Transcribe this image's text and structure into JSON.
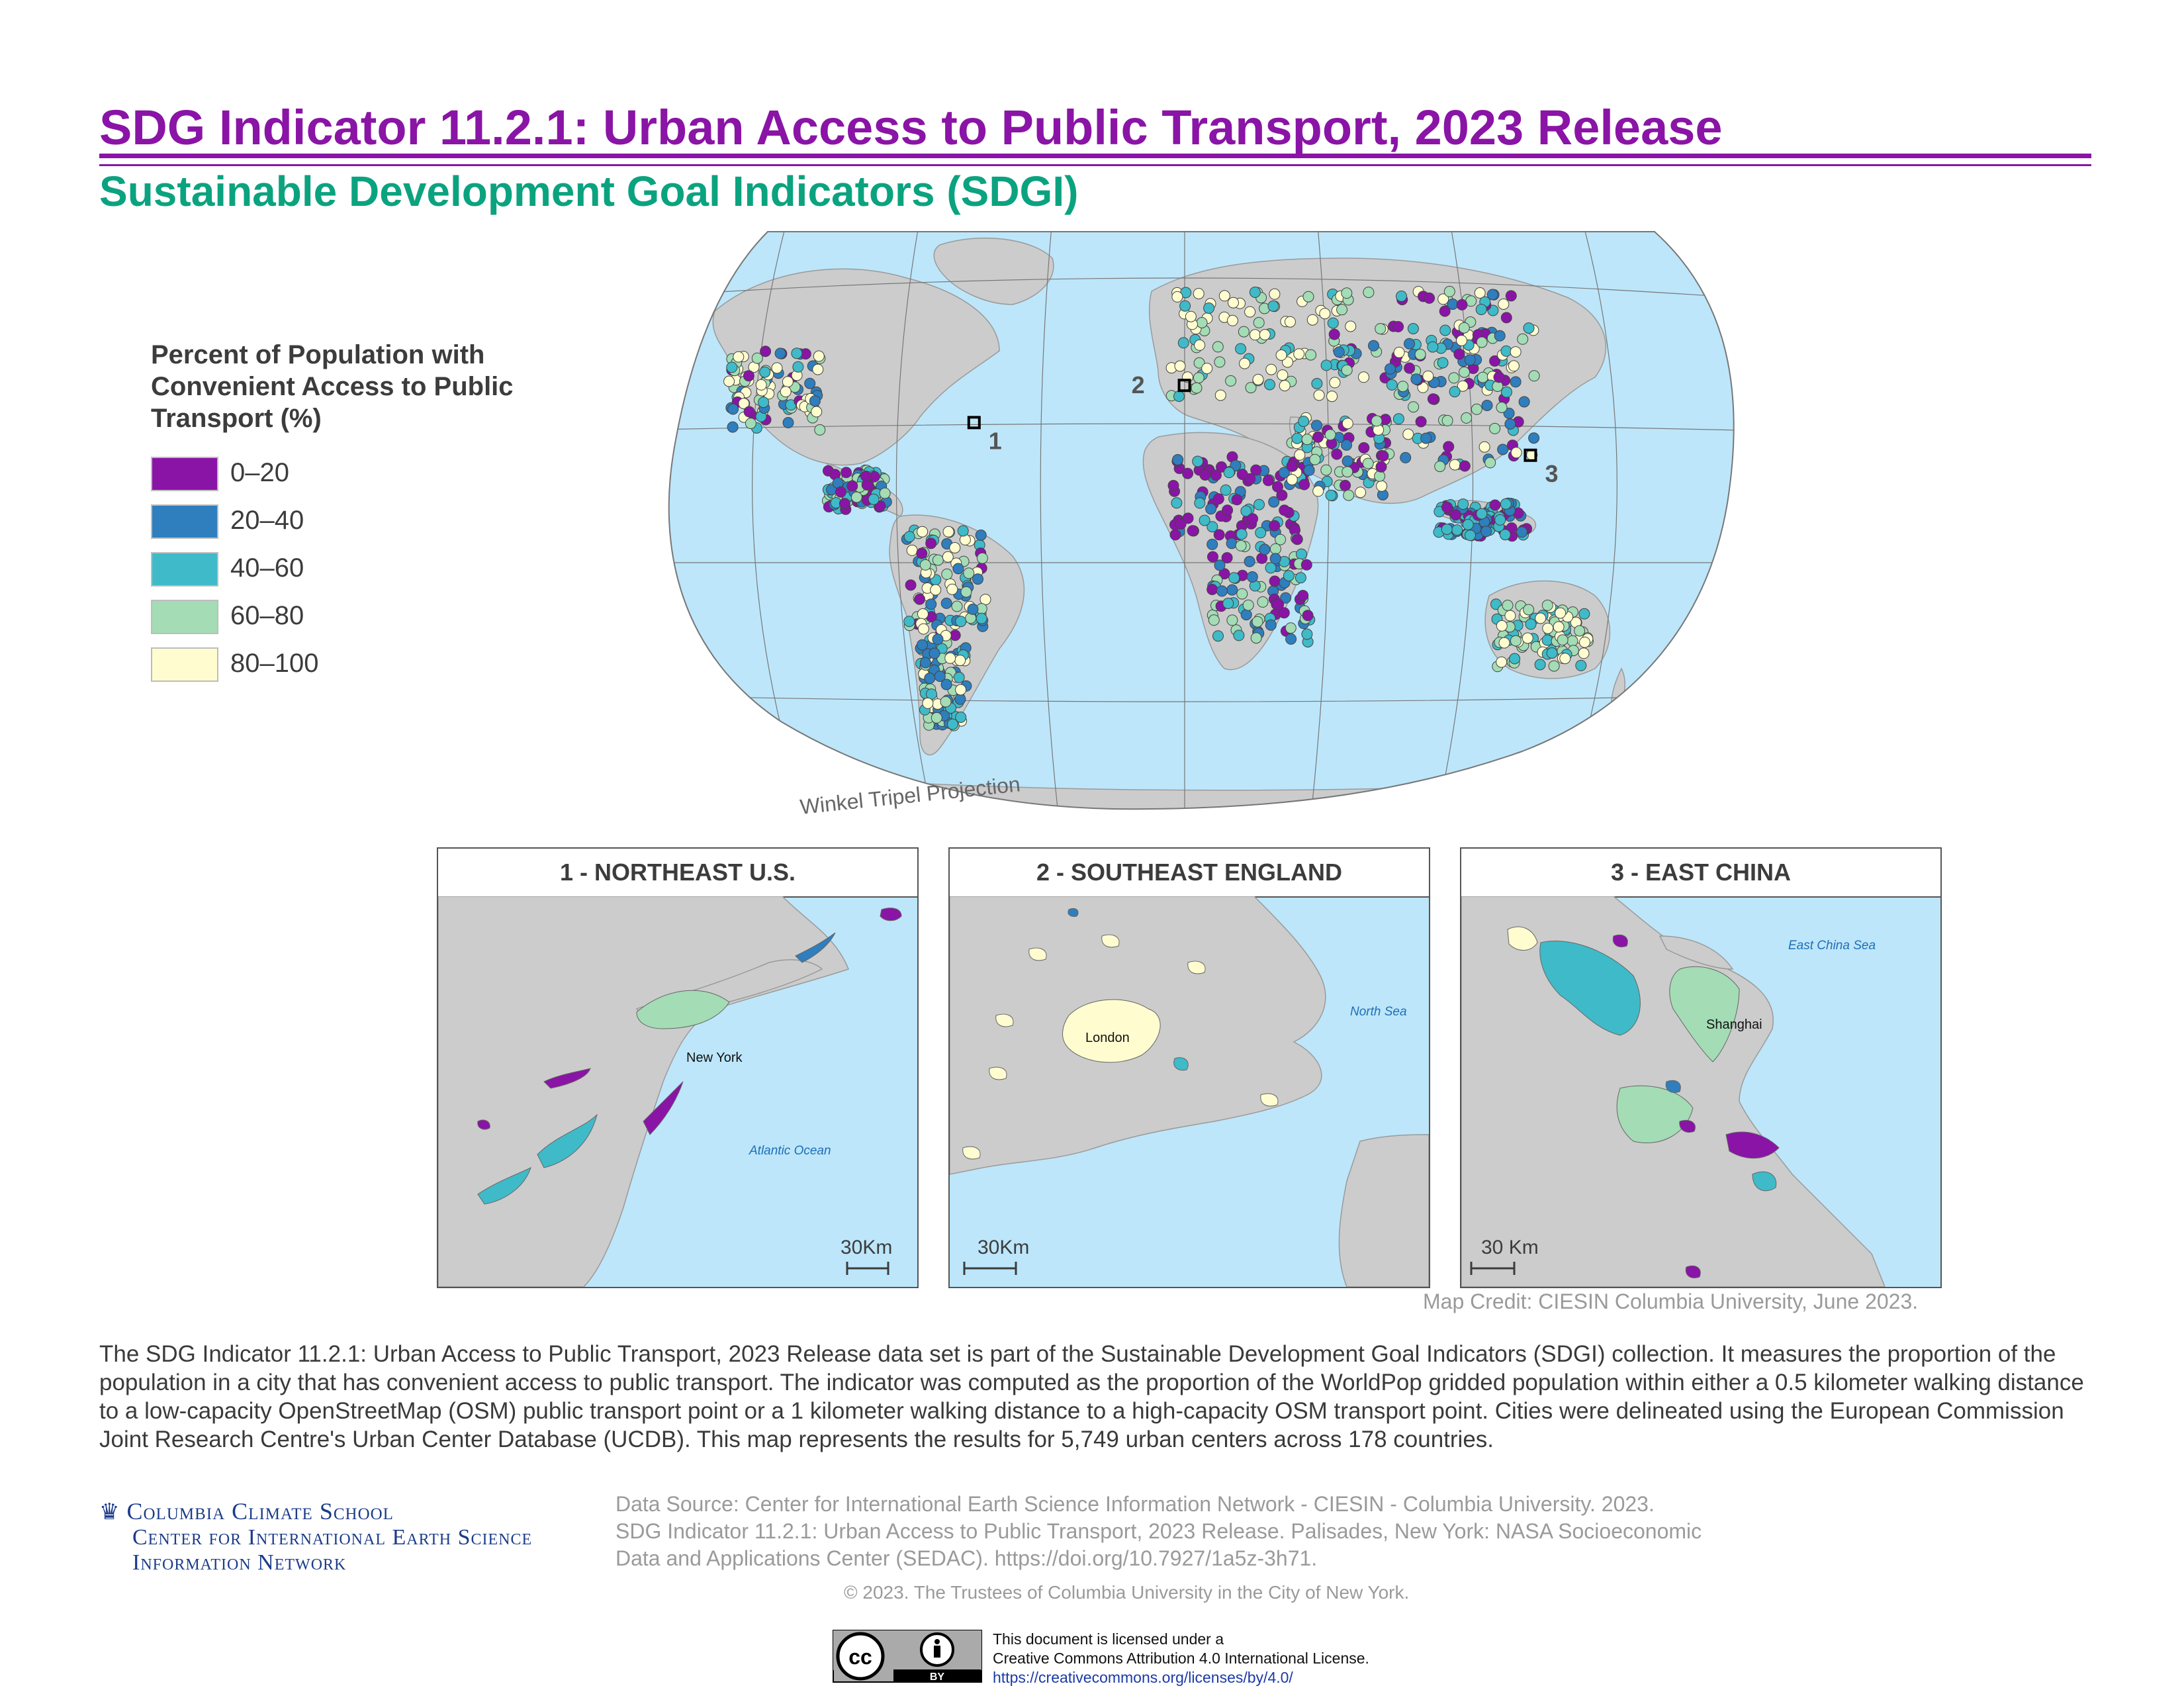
{
  "title": "SDG Indicator 11.2.1: Urban Access to Public Transport, 2023 Release",
  "subtitle": "Sustainable Development Goal Indicators (SDGI)",
  "legend": {
    "title": "Percent of Population with Convenient Access to Public Transport (%)",
    "classes": [
      {
        "label": "0–20",
        "color": "#8a14a6"
      },
      {
        "label": "20–40",
        "color": "#2f7ebd"
      },
      {
        "label": "40–60",
        "color": "#3fbac8"
      },
      {
        "label": "60–80",
        "color": "#a3dcb5"
      },
      {
        "label": "80–100",
        "color": "#fffcd0"
      }
    ]
  },
  "map": {
    "projection_label": "Winkel Tripel Projection",
    "ocean_color": "#bde6fa",
    "land_color": "#cccccc",
    "inset_markers": [
      {
        "number": "1",
        "lon": -74,
        "lat": 40.7
      },
      {
        "number": "2",
        "lon": -0.1,
        "lat": 51.5
      },
      {
        "number": "3",
        "lon": 121.5,
        "lat": 31.2
      }
    ]
  },
  "insets": [
    {
      "number": "1",
      "title": "1  -  NORTHEAST U.S.",
      "city_label": "New York",
      "water_label": "Atlantic Ocean",
      "scale_label": "30Km"
    },
    {
      "number": "2",
      "title": "2  -  SOUTHEAST ENGLAND",
      "city_label": "London",
      "water_label": "North Sea",
      "scale_label": "30Km"
    },
    {
      "number": "3",
      "title": "3  -  EAST CHINA",
      "city_label": "Shanghai",
      "water_label": "East China Sea",
      "scale_label": "30 Km"
    }
  ],
  "credit": "Map Credit: CIESIN Columbia University, June 2023.",
  "description": "The SDG Indicator 11.2.1: Urban Access to Public Transport, 2023 Release data set is part of the Sustainable Development Goal Indicators (SDGI) collection. It measures the proportion of the population in a city that has convenient access to public transport. The indicator was computed as the proportion of the WorldPop gridded population within either a 0.5 kilometer walking distance to a low-capacity OpenStreetMap (OSM) public transport point or a 1 kilometer walking distance to a high-capacity OSM transport point. Cities were delineated using the European Commission Joint Research Centre's Urban Center Database (UCDB). This map represents the results for 5,749 urban centers across 178 countries.",
  "logo": {
    "line1": "Columbia Climate School",
    "line2": "Center for International Earth Science",
    "line3": "Information Network"
  },
  "data_source": {
    "line1": "Data Source: Center for International Earth Science Information Network - CIESIN - Columbia University. 2023.",
    "line2": "SDG Indicator 11.2.1: Urban Access to Public Transport, 2023 Release. Palisades, New York: NASA Socioeconomic",
    "line3": "Data and Applications Center (SEDAC). https://doi.org/10.7927/1a5z-3h71."
  },
  "copyright": "© 2023. The Trustees of Columbia University in the City of New York.",
  "license": {
    "line1": "This document is licensed under a",
    "line2": "Creative Commons Attribution 4.0 International License.",
    "url": "https://creativecommons.org/licenses/by/4.0/",
    "badge_text": "BY"
  }
}
